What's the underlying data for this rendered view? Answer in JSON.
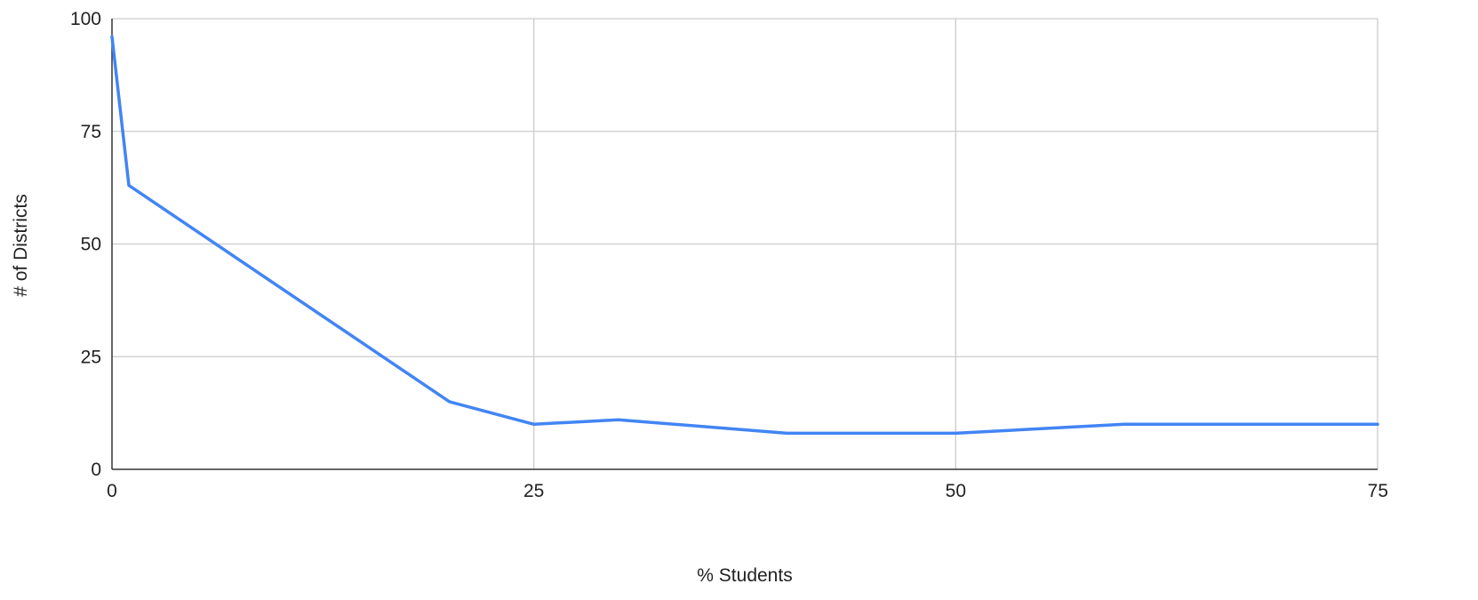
{
  "chart_data": {
    "type": "line",
    "title": "",
    "xlabel": "% Students",
    "ylabel": "# of Districts",
    "xlim": [
      0,
      75
    ],
    "ylim": [
      0,
      100
    ],
    "x_ticks": [
      "0",
      "25",
      "50",
      "75"
    ],
    "y_ticks": [
      "0",
      "25",
      "50",
      "75",
      "100"
    ],
    "grid": true,
    "legend": "none",
    "series": [
      {
        "x": [
          0,
          1,
          20,
          25,
          30,
          40,
          50,
          60,
          75
        ],
        "y": [
          96,
          63,
          15,
          10,
          11,
          8,
          8,
          10,
          10
        ]
      }
    ],
    "colors": {
      "line": "#4285f4",
      "grid": "#cccccc",
      "axis": "#333333"
    }
  }
}
